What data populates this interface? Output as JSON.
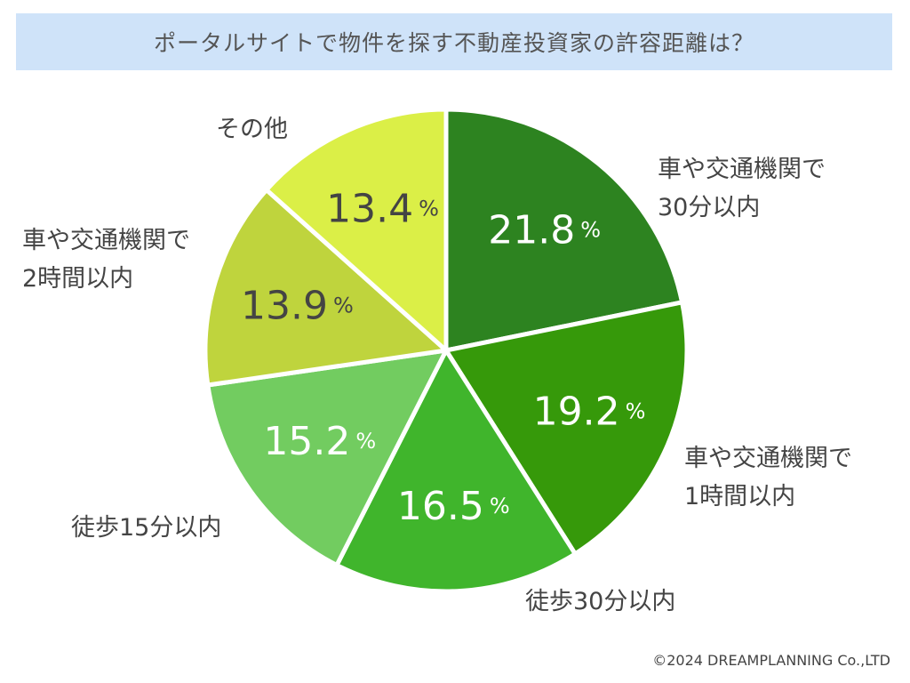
{
  "chart_data": {
    "type": "pie",
    "title": "ポータルサイトで物件を探す不動産投資家の許容距離は？",
    "unit": "%",
    "categories": [
      "車や交通機関で30分以内",
      "車や交通機関で1時間以内",
      "徒歩30分以内",
      "徒歩15分以内",
      "車や交通機関で2時間以内",
      "その他"
    ],
    "values": [
      21.8,
      19.2,
      16.5,
      15.2,
      13.9,
      13.4
    ],
    "value_labels": [
      "21.8",
      "19.2",
      "16.5",
      "15.2",
      "13.9",
      "13.4"
    ],
    "colors": [
      "#2d8320",
      "#36990a",
      "#40b52c",
      "#72cc60",
      "#bfd43d",
      "#dbef47"
    ],
    "label_colors": [
      "#ffffff",
      "#ffffff",
      "#ffffff",
      "#ffffff",
      "#444444",
      "#444444"
    ],
    "start_at": "top",
    "direction": "clockwise",
    "legend": "none",
    "category_lines": [
      [
        "車や交通機関で",
        "30分以内"
      ],
      [
        "車や交通機関で",
        "1時間以内"
      ],
      [
        "徒歩30分以内"
      ],
      [
        "徒歩15分以内"
      ],
      [
        "車や交通機関で",
        "2時間以内"
      ],
      [
        "その他"
      ]
    ]
  },
  "footer": {
    "copyright": "©2024 DREAMPLANNING Co.,LTD"
  }
}
